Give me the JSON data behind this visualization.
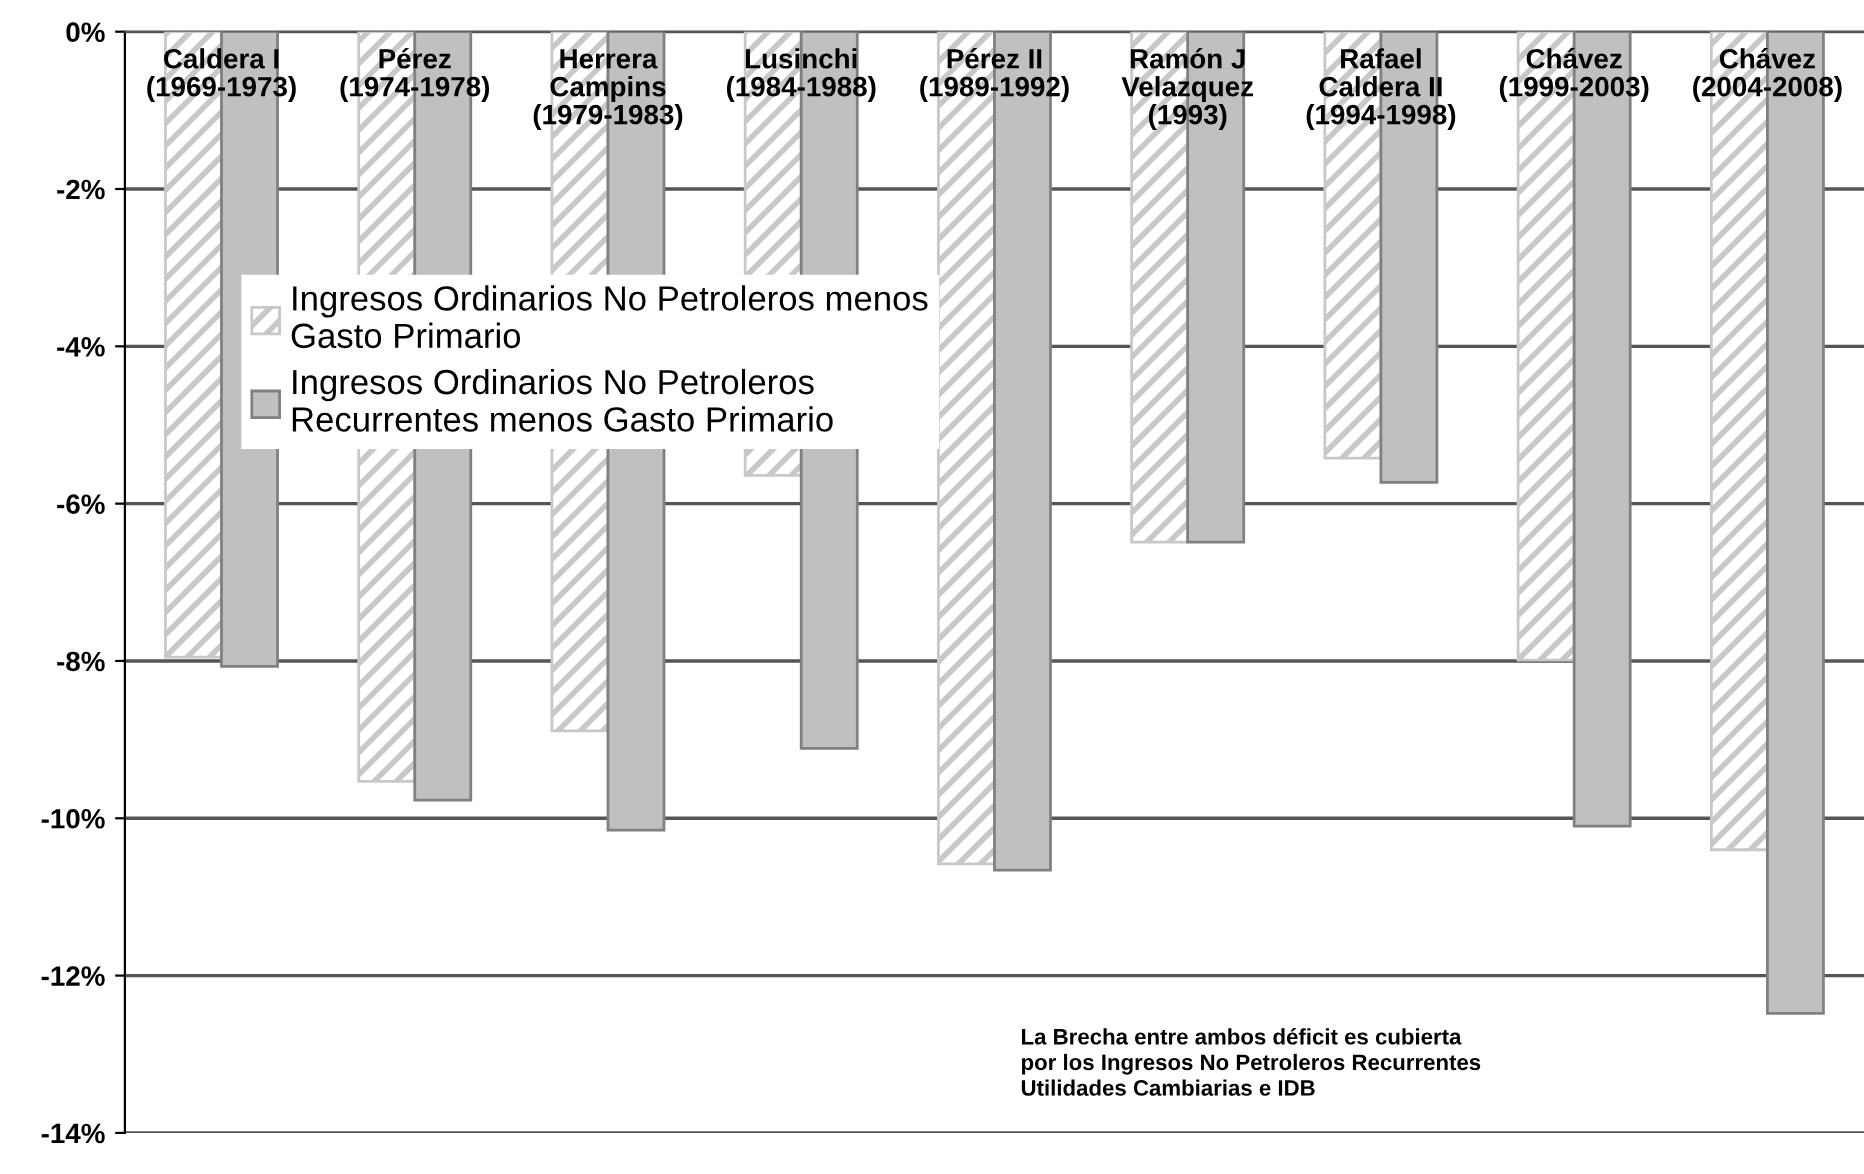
{
  "chart_data": {
    "type": "bar",
    "categories": [
      "Caldera I\n(1969-1973)",
      "Pérez\n(1974-1978)",
      "Herrera\nCampins\n(1979-1983)",
      "Lusinchi\n(1984-1988)",
      "Pérez II\n(1989-1992)",
      "Ramón J\nVelazquez\n(1993)",
      "Rafael\nCaldera II\n(1994-1998)",
      "Chávez\n(1999-2003)",
      "Chávez\n(2004-2008)"
    ],
    "series": [
      {
        "name": "Ingresos Ordinarios No Petroleros menos\nGasto Primario",
        "color": "#c8c8c8",
        "values": [
          -7.95,
          -9.53,
          -8.89,
          -5.64,
          -10.58,
          -6.49,
          -5.42,
          -7.99,
          -10.4
        ]
      },
      {
        "name": "Ingresos Ordinarios No Petroleros\nRecurrentes menos Gasto Primario",
        "color": "#c0c0c0",
        "values": [
          -8.07,
          -9.77,
          -10.15,
          -9.11,
          -10.66,
          -6.49,
          -5.73,
          -10.1,
          -12.48
        ]
      }
    ],
    "ylim": [
      -14,
      0
    ],
    "yticks": [
      {
        "value": -14,
        "label": "-14%"
      },
      {
        "value": -12,
        "label": "-12%"
      },
      {
        "value": -10,
        "label": "-10%"
      },
      {
        "value": -8,
        "label": "-8%"
      },
      {
        "value": -6,
        "label": "-6%"
      },
      {
        "value": -4,
        "label": "-4%"
      },
      {
        "value": -2,
        "label": "-2%"
      },
      {
        "value": 0,
        "label": "0%"
      }
    ],
    "grid": "y",
    "legend": "top left",
    "annotations": [
      {
        "text": "La Brecha entre ambos déficit es cubierta\npor los Ingresos No Petroleros Recurrentes\nUtilidades Cambiarias e IDB"
      }
    ]
  }
}
